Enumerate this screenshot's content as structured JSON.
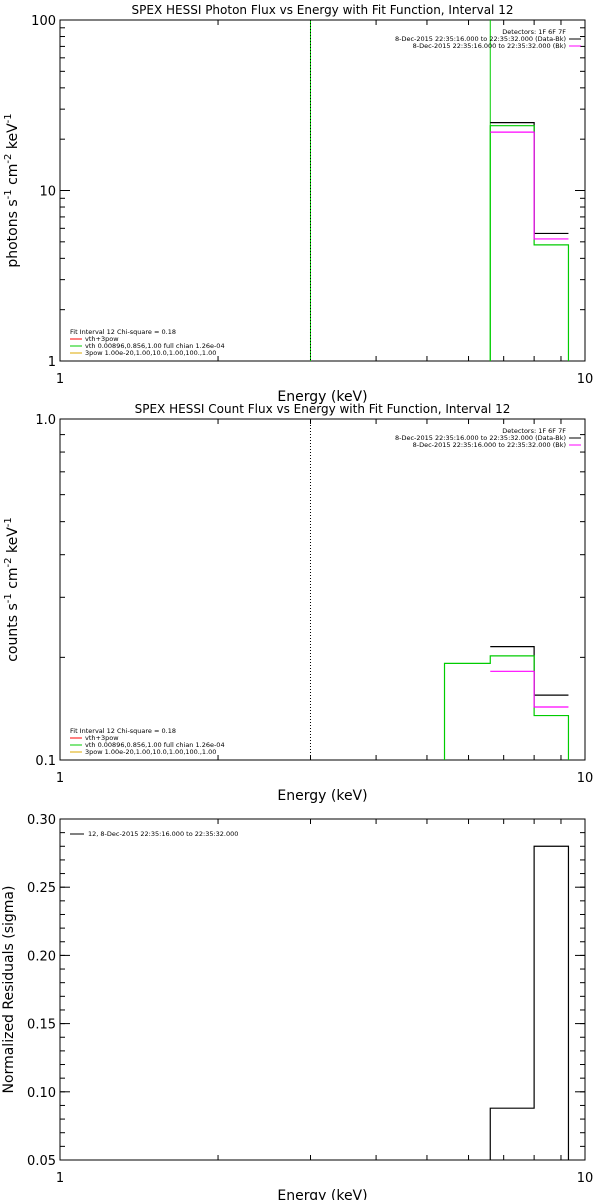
{
  "chart_data": [
    {
      "type": "line",
      "title": "SPEX HESSI Photon Flux vs Energy with Fit Function, Interval 12",
      "xlabel": "Energy (keV)",
      "ylabel_main": "photons s",
      "ylabel_exp1": "-1",
      "ylabel_mid": " cm",
      "ylabel_exp2": "-2",
      "ylabel_mid2": " keV",
      "ylabel_exp3": "-1",
      "xscale": "log",
      "yscale": "log",
      "xlim": [
        1,
        10
      ],
      "ylim": [
        1,
        100
      ],
      "xticks": [
        1,
        10
      ],
      "xtick_labels": [
        "1",
        "10"
      ],
      "yticks": [
        1,
        10,
        100
      ],
      "ytick_labels": [
        "1",
        "10",
        "100"
      ],
      "legend_top_right": [
        {
          "text": "Detectors: 1F 6F 7F",
          "color": ""
        },
        {
          "text": "8-Dec-2015 22:35:16.000 to 22:35:32.000 (Data-Bk)",
          "color": "#000000"
        },
        {
          "text": "8-Dec-2015 22:35:16.000 to 22:35:32.000 (Bk)",
          "color": "#ff00ff"
        }
      ],
      "legend_bottom_left": [
        {
          "text": "Fit Interval 12   Chi-square = 0.18",
          "color": ""
        },
        {
          "text": "vth+3pow",
          "color": "#ff0000"
        },
        {
          "text": "vth 0.00896,0.856,1.00  full chian 1.26e-04",
          "color": "#00cc00"
        },
        {
          "text": "3pow 1.00e-20,1.00,10.0,1.00,100.,1.00",
          "color": "#ddaa00"
        }
      ],
      "vlines": [
        {
          "x": 3.0,
          "color": "#00cc00",
          "style": "solid"
        },
        {
          "x": 3.0,
          "color": "#000000",
          "style": "dotted"
        },
        {
          "x": 6.6,
          "color": "#00cc00",
          "style": "solid"
        }
      ],
      "series": [
        {
          "color": "#000000",
          "steps": [
            {
              "x0": 6.6,
              "x1": 8.0,
              "y": 25.0
            },
            {
              "x0": 8.0,
              "x1": 9.3,
              "y": 5.6
            }
          ],
          "drop_to_floor": false
        },
        {
          "color": "#00cc00",
          "steps": [
            {
              "x0": 6.6,
              "x1": 8.0,
              "y": 24.0
            },
            {
              "x0": 8.0,
              "x1": 9.3,
              "y": 4.8
            }
          ],
          "drop_to_floor": true
        },
        {
          "color": "#ff00ff",
          "steps": [
            {
              "x0": 6.6,
              "x1": 8.0,
              "y": 22.0
            },
            {
              "x0": 8.0,
              "x1": 9.3,
              "y": 5.2
            }
          ],
          "drop_to_floor": false
        }
      ]
    },
    {
      "type": "line",
      "title": "SPEX HESSI Count Flux vs Energy with Fit Function, Interval 12",
      "xlabel": "Energy (keV)",
      "ylabel_main": "counts s",
      "ylabel_exp1": "-1",
      "ylabel_mid": " cm",
      "ylabel_exp2": "-2",
      "ylabel_mid2": " keV",
      "ylabel_exp3": "-1",
      "xscale": "log",
      "yscale": "log",
      "xlim": [
        1,
        10
      ],
      "ylim": [
        0.1,
        1.0
      ],
      "xticks": [
        1,
        10
      ],
      "xtick_labels": [
        "1",
        "10"
      ],
      "yticks": [
        0.1,
        1.0
      ],
      "ytick_labels": [
        "0.1",
        "1.0"
      ],
      "legend_top_right": [
        {
          "text": "Detectors: 1F 6F 7F",
          "color": ""
        },
        {
          "text": "8-Dec-2015 22:35:16.000 to 22:35:32.000 (Data-Bk)",
          "color": "#000000"
        },
        {
          "text": "8-Dec-2015 22:35:16.000 to 22:35:32.000 (Bk)",
          "color": "#ff00ff"
        }
      ],
      "legend_bottom_left": [
        {
          "text": "Fit Interval 12   Chi-square = 0.18",
          "color": ""
        },
        {
          "text": "vth+3pow",
          "color": "#ff0000"
        },
        {
          "text": "vth 0.00896,0.856,1.00  full chian 1.26e-04",
          "color": "#00cc00"
        },
        {
          "text": "3pow 1.00e-20,1.00,10.0,1.00,100.,1.00",
          "color": "#ddaa00"
        }
      ],
      "vlines": [
        {
          "x": 3.0,
          "color": "#000000",
          "style": "dotted"
        }
      ],
      "series": [
        {
          "color": "#000000",
          "steps": [
            {
              "x0": 6.6,
              "x1": 8.0,
              "y": 0.215
            },
            {
              "x0": 8.0,
              "x1": 9.3,
              "y": 0.155
            }
          ],
          "drop_to_floor": false
        },
        {
          "color": "#00cc00",
          "steps": [
            {
              "x0": 5.4,
              "x1": 6.6,
              "y": 0.192
            },
            {
              "x0": 6.6,
              "x1": 8.0,
              "y": 0.202
            },
            {
              "x0": 8.0,
              "x1": 9.3,
              "y": 0.135
            }
          ],
          "drop_to_floor": true
        },
        {
          "color": "#ff00ff",
          "steps": [
            {
              "x0": 6.6,
              "x1": 8.0,
              "y": 0.182
            },
            {
              "x0": 8.0,
              "x1": 9.3,
              "y": 0.143
            }
          ],
          "drop_to_floor": false
        }
      ]
    },
    {
      "type": "line",
      "title": "",
      "xlabel": "Energy (keV)",
      "ylabel_main": "Normalized Residuals (sigma)",
      "xscale": "log",
      "yscale": "linear",
      "xlim": [
        1,
        10
      ],
      "ylim": [
        0.05,
        0.3
      ],
      "xticks": [
        1,
        10
      ],
      "xtick_labels": [
        "1",
        "10"
      ],
      "yticks": [
        0.05,
        0.1,
        0.15,
        0.2,
        0.25,
        0.3
      ],
      "ytick_labels": [
        "0.05",
        "0.10",
        "0.15",
        "0.20",
        "0.25",
        "0.30"
      ],
      "legend_top_left": [
        {
          "text": "12,  8-Dec-2015 22:35:16.000 to 22:35:32.000",
          "color": "#000000"
        }
      ],
      "series": [
        {
          "color": "#000000",
          "steps": [
            {
              "x0": 6.6,
              "x1": 8.0,
              "y": 0.088
            },
            {
              "x0": 8.0,
              "x1": 9.3,
              "y": 0.28
            }
          ],
          "drop_to_floor": true
        }
      ]
    }
  ]
}
